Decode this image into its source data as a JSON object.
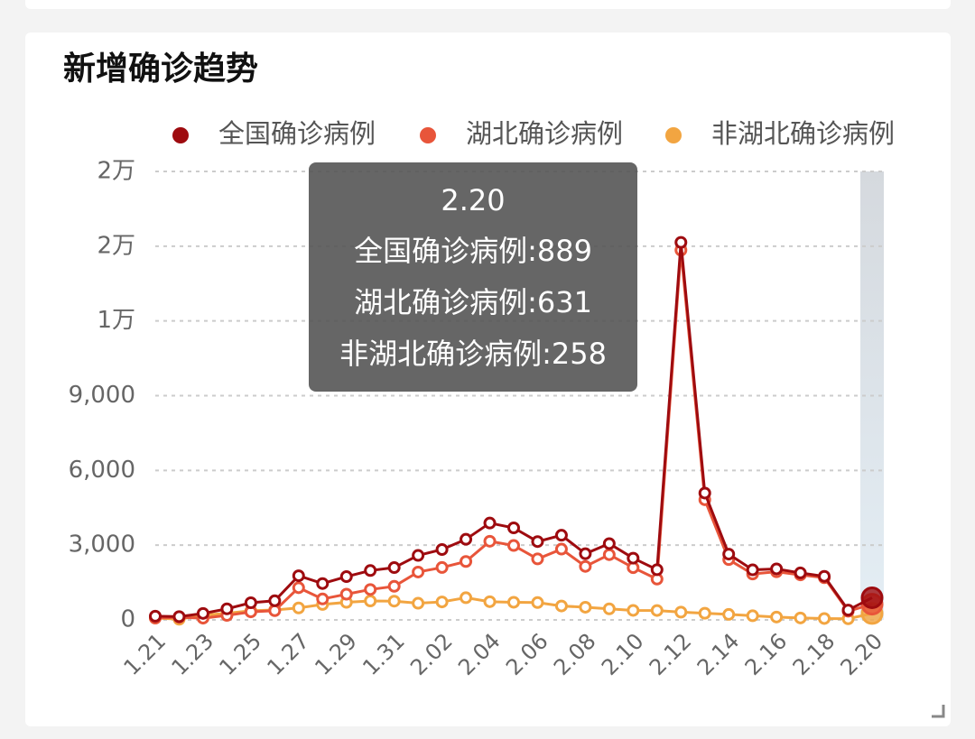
{
  "chart_data": {
    "type": "line",
    "title": "新增确诊趋势",
    "categories": [
      "1.21",
      null,
      "1.23",
      null,
      "1.25",
      null,
      "1.27",
      null,
      "1.29",
      null,
      "1.31",
      null,
      "2.02",
      null,
      "2.04",
      null,
      "2.06",
      null,
      "2.08",
      null,
      "2.10",
      null,
      "2.12",
      null,
      "2.14",
      null,
      "2.16",
      null,
      "2.18",
      null,
      "2.20"
    ],
    "series": [
      {
        "name": "全国确诊病例",
        "color": "#9e0b0f",
        "values": [
          149,
          131,
          259,
          444,
          688,
          769,
          1771,
          1459,
          1737,
          1981,
          2099,
          2589,
          2825,
          3235,
          3887,
          3694,
          3143,
          3399,
          2656,
          3062,
          2478,
          2015,
          15152,
          5090,
          2641,
          2009,
          2048,
          1886,
          1749,
          394,
          889
        ]
      },
      {
        "name": "湖北确诊病例",
        "color": "#e8553a",
        "values": [
          72,
          105,
          69,
          180,
          323,
          371,
          1291,
          840,
          1032,
          1220,
          1347,
          1921,
          2103,
          2345,
          3156,
          2987,
          2447,
          2841,
          2147,
          2618,
          2097,
          1638,
          14840,
          4823,
          2420,
          1843,
          1933,
          1807,
          1693,
          349,
          631
        ]
      },
      {
        "name": "非湖北确诊病例",
        "color": "#f2a541",
        "values": [
          77,
          26,
          190,
          264,
          365,
          398,
          480,
          619,
          705,
          761,
          752,
          668,
          722,
          890,
          731,
          707,
          696,
          558,
          509,
          444,
          381,
          377,
          312,
          267,
          221,
          166,
          115,
          79,
          56,
          45,
          258
        ]
      }
    ],
    "ylim": [
      0,
      18000
    ],
    "yticks": [
      0,
      {
        "value": 3000,
        "label": "3,000"
      },
      {
        "value": 6000,
        "label": "6,000"
      },
      {
        "value": 9000,
        "label": "9,000"
      },
      {
        "value": 12000,
        "label": "1万"
      },
      {
        "value": 15000,
        "label": "2万"
      },
      {
        "value": 18000,
        "label": "2万"
      }
    ],
    "grid": true,
    "legend": "top"
  }
}
